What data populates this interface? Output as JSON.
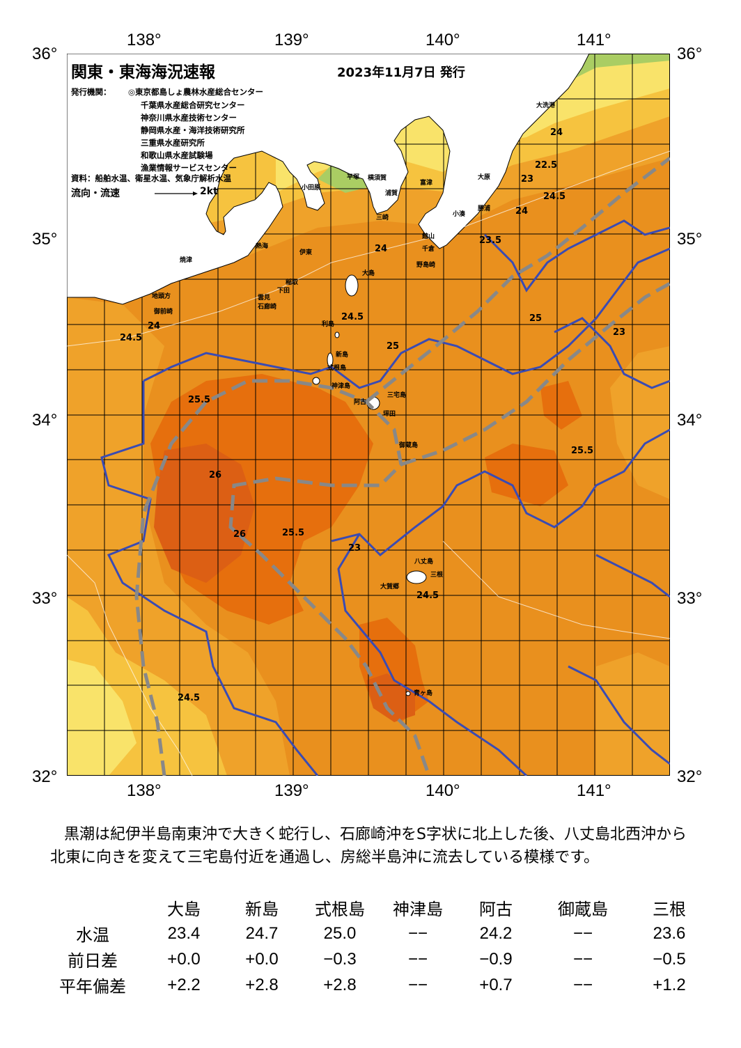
{
  "map": {
    "title": "関東・東海海況速報",
    "date": "2023年11月7日 発行",
    "issuer_label": "発行機関：",
    "issuers": [
      "◎東京都島しょ農林水産総合センター",
      "千葉県水産総合研究センター",
      "神奈川県水産技術センター",
      "静岡県水産・海洋技術研究所",
      "三重県水産研究所",
      "和歌山県水産試験場",
      "漁業情報サービスセンター"
    ],
    "source": "資料：船舶水温、衛星水温、気象庁解析水温",
    "flow_label": "流向・流速",
    "flow_scale": "2kt",
    "lon_labels": [
      "138°",
      "139°",
      "140°",
      "141°"
    ],
    "lat_labels": [
      "36°",
      "35°",
      "34°",
      "33°",
      "32°"
    ],
    "colors": {
      "t22": "#aacd63",
      "t23": "#f9e36a",
      "t24": "#f6c33f",
      "t245": "#efa22a",
      "t25": "#e9901e",
      "t255": "#e66f0d",
      "t26": "#dc5f14",
      "land": "#ffffff",
      "isoline": "#3a4bb3",
      "kuroshio": "#888888"
    },
    "isotherm_labels": [
      "24",
      "24.5",
      "25",
      "25.5",
      "26",
      "23",
      "23.5",
      "22.5"
    ],
    "places": [
      "大島",
      "利島",
      "新島",
      "式根島",
      "神津島",
      "三宅島",
      "御蔵島",
      "八丈島",
      "三根",
      "大賀郷",
      "青ヶ島",
      "阿古",
      "坪田",
      "大洗港",
      "大原",
      "勝浦",
      "小湊",
      "館山",
      "千倉",
      "野島崎",
      "浦賀",
      "横須賀",
      "富津",
      "平塚",
      "小田原",
      "三崎",
      "熱海",
      "伊東",
      "下田",
      "石廊崎",
      "御前崎",
      "焼津",
      "地頭方",
      "雲見",
      "稲取"
    ]
  },
  "description": "黒潮は紀伊半島南東沖で大きく蛇行し、石廊崎沖をS字状に北上した後、八丈島北西沖から北東に向きを変えて三宅島付近を通過し、房総半島沖に流去している模様です。",
  "table": {
    "columns": [
      "大島",
      "新島",
      "式根島",
      "神津島",
      "阿古",
      "御蔵島",
      "三根"
    ],
    "rows": [
      {
        "label": "水温",
        "values": [
          "23.4",
          "24.7",
          "25.0",
          "−−",
          "24.2",
          "−−",
          "23.6"
        ]
      },
      {
        "label": "前日差",
        "values": [
          "+0.0",
          "+0.0",
          "−0.3",
          "−−",
          "−0.9",
          "−−",
          "−0.5"
        ]
      },
      {
        "label": "平年偏差",
        "values": [
          "+2.2",
          "+2.8",
          "+2.8",
          "−−",
          "+0.7",
          "−−",
          "+1.2"
        ]
      }
    ]
  }
}
